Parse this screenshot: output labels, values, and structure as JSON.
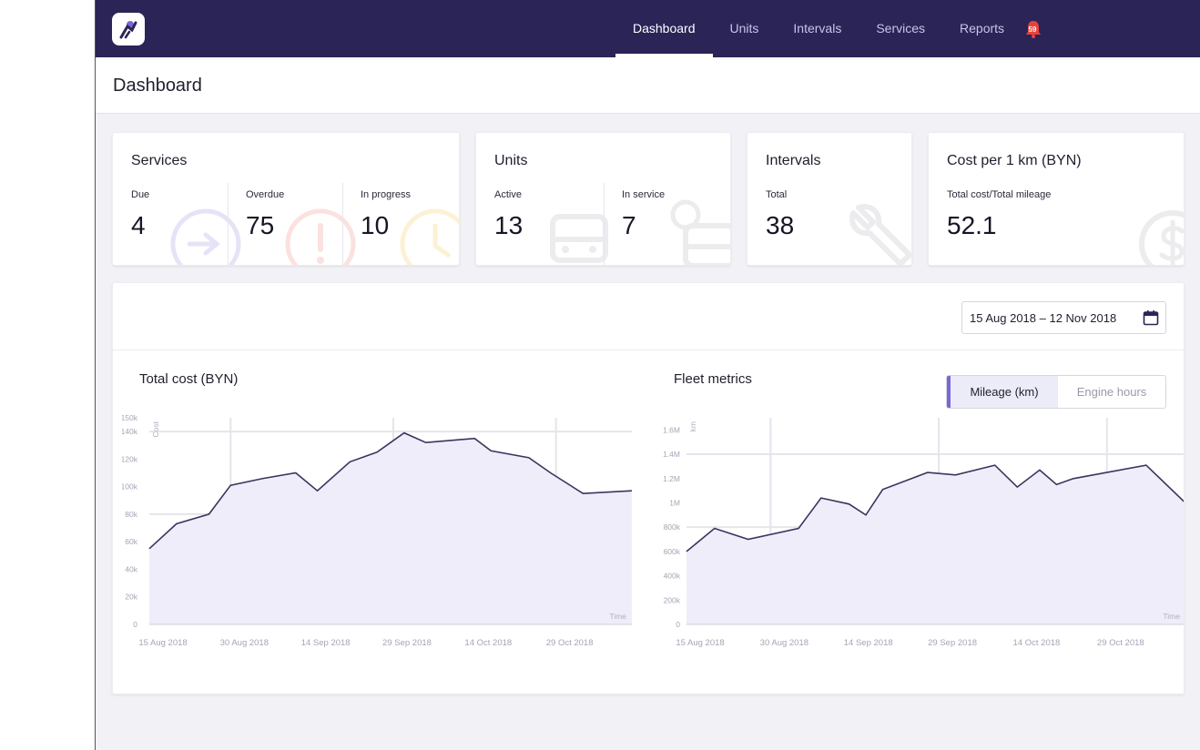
{
  "nav": {
    "items": [
      {
        "label": "Dashboard",
        "active": true
      },
      {
        "label": "Units",
        "active": false
      },
      {
        "label": "Intervals",
        "active": false
      },
      {
        "label": "Services",
        "active": false
      },
      {
        "label": "Reports",
        "active": false
      }
    ],
    "notifications_count": "59"
  },
  "page": {
    "title": "Dashboard"
  },
  "cards": {
    "services": {
      "title": "Services",
      "due_label": "Due",
      "due_value": "4",
      "overdue_label": "Overdue",
      "overdue_value": "75",
      "inprogress_label": "In progress",
      "inprogress_value": "10"
    },
    "units": {
      "title": "Units",
      "active_label": "Active",
      "active_value": "13",
      "inservice_label": "In service",
      "inservice_value": "7"
    },
    "intervals": {
      "title": "Intervals",
      "total_label": "Total",
      "total_value": "38"
    },
    "cost": {
      "title": "Cost per 1 km (BYN)",
      "sub_label": "Total cost/Total mileage",
      "value": "52.1"
    }
  },
  "date_range": "15 Aug 2018 – 12 Nov 2018",
  "fleet": {
    "title": "Fleet metrics",
    "toggle": [
      "Mileage (km)",
      "Engine hours"
    ]
  },
  "colors": {
    "nav_bg": "#2b2457",
    "accent": "#7a67d6",
    "line": "#3a3560",
    "area": "#efedf9"
  },
  "chart_data": [
    {
      "type": "area",
      "title": "Total cost (BYN)",
      "ylabel": "Cost",
      "xlabel": "Time",
      "ylim": [
        0,
        150000
      ],
      "yticks": [
        "0",
        "20k",
        "40k",
        "60k",
        "80k",
        "100k",
        "120k",
        "140k",
        "150k"
      ],
      "ytick_values": [
        0,
        20000,
        40000,
        60000,
        80000,
        100000,
        120000,
        140000,
        150000
      ],
      "xticks": [
        "15 Aug 2018",
        "30 Aug 2018",
        "14 Sep 2018",
        "29 Sep 2018",
        "14 Oct 2018",
        "29 Oct 2018"
      ],
      "xlim": [
        "2018-08-15",
        "2018-11-12"
      ],
      "grid": true,
      "x": [
        "2018-08-15",
        "2018-08-20",
        "2018-08-26",
        "2018-08-30",
        "2018-09-05",
        "2018-09-11",
        "2018-09-15",
        "2018-09-21",
        "2018-09-26",
        "2018-10-01",
        "2018-10-05",
        "2018-10-14",
        "2018-10-17",
        "2018-10-24",
        "2018-10-28",
        "2018-11-03",
        "2018-11-12"
      ],
      "values": [
        55000,
        73000,
        80000,
        101000,
        106000,
        110000,
        97000,
        118000,
        125000,
        139000,
        132000,
        135000,
        126000,
        121000,
        110000,
        95000,
        97000
      ]
    },
    {
      "type": "area",
      "title": "Fleet metrics",
      "ylabel": "km",
      "xlabel": "Time",
      "ylim": [
        0,
        1700000
      ],
      "yticks": [
        "0",
        "200k",
        "400k",
        "600k",
        "800k",
        "1M",
        "1.2M",
        "1.4M",
        "1.6M"
      ],
      "ytick_values": [
        0,
        200000,
        400000,
        600000,
        800000,
        1000000,
        1200000,
        1400000,
        1600000
      ],
      "xticks": [
        "15 Aug 2018",
        "30 Aug 2018",
        "14 Sep 2018",
        "29 Sep 2018",
        "14 Oct 2018",
        "29 Oct 2018"
      ],
      "xlim": [
        "2018-08-15",
        "2018-11-12"
      ],
      "grid": true,
      "x": [
        "2018-08-15",
        "2018-08-20",
        "2018-08-26",
        "2018-09-04",
        "2018-09-08",
        "2018-09-13",
        "2018-09-16",
        "2018-09-19",
        "2018-09-27",
        "2018-10-02",
        "2018-10-09",
        "2018-10-13",
        "2018-10-17",
        "2018-10-20",
        "2018-10-23",
        "2018-11-05",
        "2018-11-12"
      ],
      "values": [
        600000,
        790000,
        700000,
        790000,
        1040000,
        990000,
        900000,
        1110000,
        1250000,
        1230000,
        1310000,
        1130000,
        1270000,
        1150000,
        1200000,
        1310000,
        1000000
      ]
    }
  ]
}
